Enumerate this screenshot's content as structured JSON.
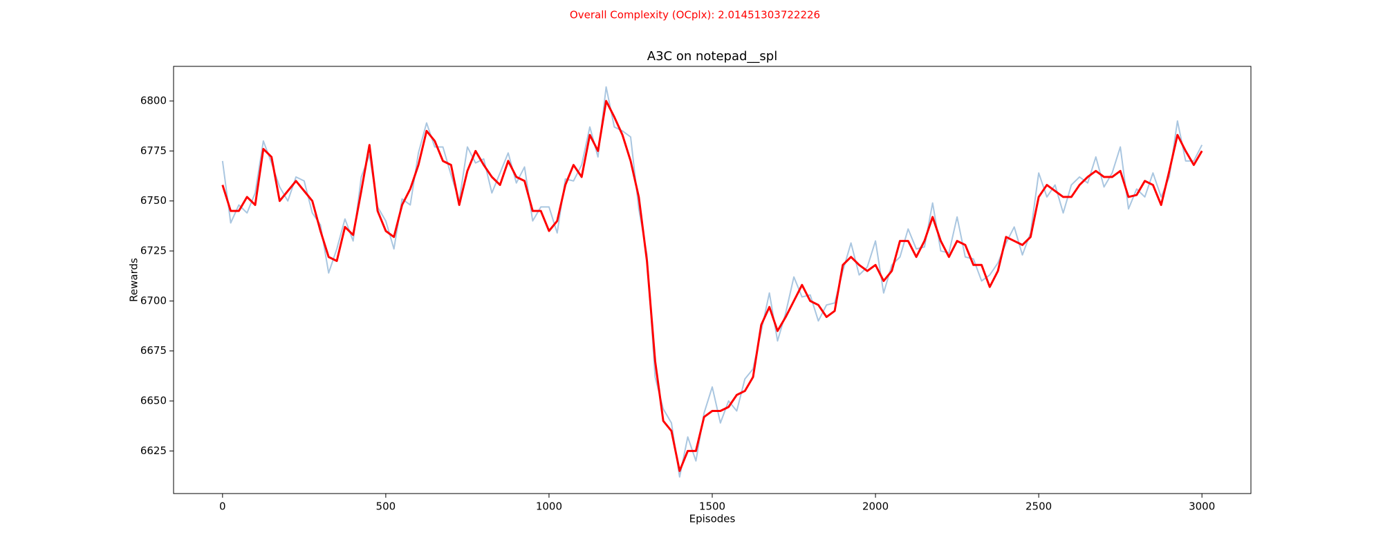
{
  "chart_data": {
    "type": "line",
    "suptitle": "Overall Complexity (OCplx): 2.01451303722226",
    "suptitle_color": "#ff0000",
    "title": "A3C on notepad__spl",
    "xlabel": "Episodes",
    "ylabel": "Rewards",
    "x": [
      0,
      25,
      50,
      75,
      100,
      125,
      150,
      175,
      200,
      225,
      250,
      275,
      300,
      325,
      350,
      375,
      400,
      425,
      450,
      475,
      500,
      525,
      550,
      575,
      600,
      625,
      650,
      675,
      700,
      725,
      750,
      775,
      800,
      825,
      850,
      875,
      900,
      925,
      950,
      975,
      1000,
      1025,
      1050,
      1075,
      1100,
      1125,
      1150,
      1175,
      1200,
      1225,
      1250,
      1275,
      1300,
      1325,
      1350,
      1375,
      1400,
      1425,
      1450,
      1475,
      1500,
      1525,
      1550,
      1575,
      1600,
      1625,
      1650,
      1675,
      1700,
      1725,
      1750,
      1775,
      1800,
      1825,
      1850,
      1875,
      1900,
      1925,
      1950,
      1975,
      2000,
      2025,
      2050,
      2075,
      2100,
      2125,
      2150,
      2175,
      2200,
      2225,
      2250,
      2275,
      2300,
      2325,
      2350,
      2375,
      2400,
      2425,
      2450,
      2475,
      2500,
      2525,
      2550,
      2575,
      2600,
      2625,
      2650,
      2675,
      2700,
      2725,
      2750,
      2775,
      2800,
      2825,
      2850,
      2875,
      2900,
      2925,
      2950,
      2975,
      3000
    ],
    "series": [
      {
        "color": "#a9c6e0",
        "width": 2,
        "values": [
          6770,
          6739,
          6748,
          6744,
          6754,
          6780,
          6769,
          6757,
          6750,
          6762,
          6760,
          6744,
          6738,
          6714,
          6726,
          6741,
          6730,
          6762,
          6773,
          6747,
          6740,
          6726,
          6751,
          6748,
          6774,
          6789,
          6777,
          6777,
          6763,
          6750,
          6777,
          6769,
          6771,
          6754,
          6764,
          6774,
          6759,
          6767,
          6740,
          6747,
          6747,
          6734,
          6761,
          6760,
          6768,
          6787,
          6772,
          6807,
          6787,
          6785,
          6782,
          6746,
          6723,
          6662,
          6646,
          6639,
          6612,
          6632,
          6620,
          6644,
          6657,
          6639,
          6650,
          6645,
          6661,
          6666,
          6685,
          6704,
          6680,
          6694,
          6712,
          6702,
          6703,
          6690,
          6698,
          6699,
          6715,
          6729,
          6713,
          6717,
          6730,
          6704,
          6718,
          6722,
          6736,
          6726,
          6727,
          6749,
          6725,
          6724,
          6742,
          6722,
          6721,
          6710,
          6713,
          6719,
          6729,
          6737,
          6723,
          6734,
          6764,
          6752,
          6758,
          6744,
          6758,
          6762,
          6759,
          6772,
          6757,
          6764,
          6777,
          6746,
          6756,
          6752,
          6764,
          6752,
          6762,
          6790,
          6770,
          6770,
          6778
        ]
      },
      {
        "color": "#ff0000",
        "width": 3,
        "values": [
          6758,
          6745,
          6745,
          6752,
          6748,
          6776,
          6772,
          6750,
          6755,
          6760,
          6755,
          6750,
          6735,
          6722,
          6720,
          6737,
          6733,
          6755,
          6778,
          6745,
          6735,
          6732,
          6748,
          6756,
          6768,
          6785,
          6780,
          6770,
          6768,
          6748,
          6765,
          6775,
          6768,
          6762,
          6758,
          6770,
          6762,
          6760,
          6745,
          6745,
          6735,
          6740,
          6758,
          6768,
          6762,
          6783,
          6775,
          6800,
          6792,
          6783,
          6770,
          6752,
          6720,
          6670,
          6640,
          6635,
          6615,
          6625,
          6625,
          6642,
          6645,
          6645,
          6647,
          6653,
          6655,
          6662,
          6688,
          6697,
          6685,
          6692,
          6700,
          6708,
          6700,
          6698,
          6692,
          6695,
          6718,
          6722,
          6718,
          6715,
          6718,
          6710,
          6715,
          6730,
          6730,
          6722,
          6730,
          6742,
          6730,
          6722,
          6730,
          6728,
          6718,
          6718,
          6707,
          6715,
          6732,
          6730,
          6728,
          6732,
          6752,
          6758,
          6755,
          6752,
          6752,
          6758,
          6762,
          6765,
          6762,
          6762,
          6765,
          6752,
          6753,
          6760,
          6758,
          6748,
          6765,
          6783,
          6775,
          6768,
          6775
        ]
      }
    ],
    "xlim": [
      -150,
      3150
    ],
    "xticks": [
      0,
      500,
      1000,
      1500,
      2000,
      2500,
      3000
    ],
    "ylim": [
      6603.7,
      6817.3
    ],
    "yticks": [
      6625,
      6650,
      6675,
      6700,
      6725,
      6750,
      6775,
      6800
    ],
    "grid": false
  }
}
